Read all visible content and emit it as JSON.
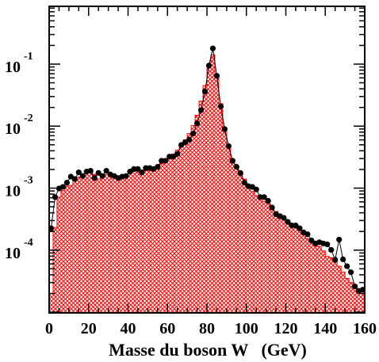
{
  "chart_data": {
    "type": "histogram+scatter",
    "title": "",
    "xlabel": "Masse du boson W   (GeV)",
    "ylabel": "",
    "xlim": [
      0,
      160
    ],
    "ylim": [
      9.72e-06,
      0.855
    ],
    "log_y": true,
    "grid": false,
    "bin_width": 2,
    "x_ticks": [
      0,
      20,
      40,
      60,
      80,
      100,
      120,
      140,
      160
    ],
    "y_ticks": [
      {
        "base": "10",
        "exp": "-4",
        "value": 0.0001
      },
      {
        "base": "10",
        "exp": "-3",
        "value": 0.001
      },
      {
        "base": "10",
        "exp": "-2",
        "value": 0.01
      },
      {
        "base": "10",
        "exp": "-1",
        "value": 0.1
      }
    ],
    "colors": {
      "histogram": "#ff0000",
      "points": "#000000",
      "line": "#000000"
    },
    "x": [
      1,
      3,
      5,
      7,
      9,
      11,
      13,
      15,
      17,
      19,
      21,
      23,
      25,
      27,
      29,
      31,
      33,
      35,
      37,
      39,
      41,
      43,
      45,
      47,
      49,
      51,
      53,
      55,
      57,
      59,
      61,
      63,
      65,
      67,
      69,
      71,
      73,
      75,
      77,
      79,
      81,
      83,
      85,
      87,
      89,
      91,
      93,
      95,
      97,
      99,
      101,
      103,
      105,
      107,
      109,
      111,
      113,
      115,
      117,
      119,
      121,
      123,
      125,
      127,
      129,
      131,
      133,
      135,
      137,
      139,
      141,
      143,
      145,
      147,
      149,
      151,
      153,
      155,
      157,
      159
    ],
    "series": [
      {
        "kind": "histogram",
        "values": [
          2e-05,
          0.000231,
          0.000716,
          0.000913,
          0.001075,
          0.001106,
          0.001378,
          0.001499,
          0.001622,
          0.001795,
          0.001957,
          0.001662,
          0.001404,
          0.001532,
          0.001662,
          0.001622,
          0.001568,
          0.001454,
          0.001568,
          0.001598,
          0.001754,
          0.001907,
          0.001795,
          0.001848,
          0.001907,
          0.002035,
          0.002107,
          0.002202,
          0.00246,
          0.002761,
          0.003221,
          0.003561,
          0.004101,
          0.004976,
          0.006034,
          0.00758,
          0.010244,
          0.014993,
          0.025316,
          0.044938,
          0.086516,
          0.141052,
          0.06473,
          0.023053,
          0.008977,
          0.004387,
          0.002835,
          0.002202,
          0.001754,
          0.001404,
          0.001138,
          0.000881,
          0.00076,
          0.000663,
          0.000608,
          0.000563,
          0.000487,
          0.000419,
          0.000373,
          0.000337,
          0.000297,
          0.000265,
          0.000231,
          0.000206,
          0.000178,
          0.000152,
          0.000143,
          0.000128,
          0.000114,
          9.7e-05,
          7.9e-05,
          7.5e-05,
          6.6e-05,
          5.5e-05,
          4.4e-05,
          3.5e-05,
          3e-05,
          2.6e-05,
          2.2e-05,
          2e-05
        ]
      },
      {
        "kind": "points",
        "values": [
          0.000225,
          0.000716,
          0.000986,
          0.001046,
          0.001226,
          0.001532,
          0.001404,
          0.001795,
          0.001568,
          0.001848,
          0.001907,
          0.001454,
          0.001757,
          0.001568,
          0.001907,
          0.001662,
          0.001568,
          0.001454,
          0.001532,
          0.001568,
          0.001848,
          0.002035,
          0.002035,
          0.001795,
          0.002107,
          0.002107,
          0.002035,
          0.002202,
          0.002761,
          0.002761,
          0.003221,
          0.003221,
          0.003561,
          0.004976,
          0.005466,
          0.006034,
          0.00758,
          0.011069,
          0.018114,
          0.036278,
          0.094812,
          0.17929,
          0.06473,
          0.020853,
          0.008977,
          0.004763,
          0.002761,
          0.002202,
          0.001754,
          0.001226,
          0.001075,
          0.001046,
          0.000951,
          0.000716,
          0.000716,
          0.000625,
          0.000487,
          0.000379,
          0.000354,
          0.000331,
          0.000285,
          0.00025,
          0.00025,
          0.000225,
          0.000193,
          0.00018,
          0.000143,
          0.000128,
          0.000134,
          0.000128,
          0.000124,
          0.000101,
          7e-05,
          0.000148,
          7.1e-05,
          5.5e-05,
          4.4e-05,
          2.6e-05,
          2.2e-05,
          2.3e-05
        ]
      }
    ]
  }
}
